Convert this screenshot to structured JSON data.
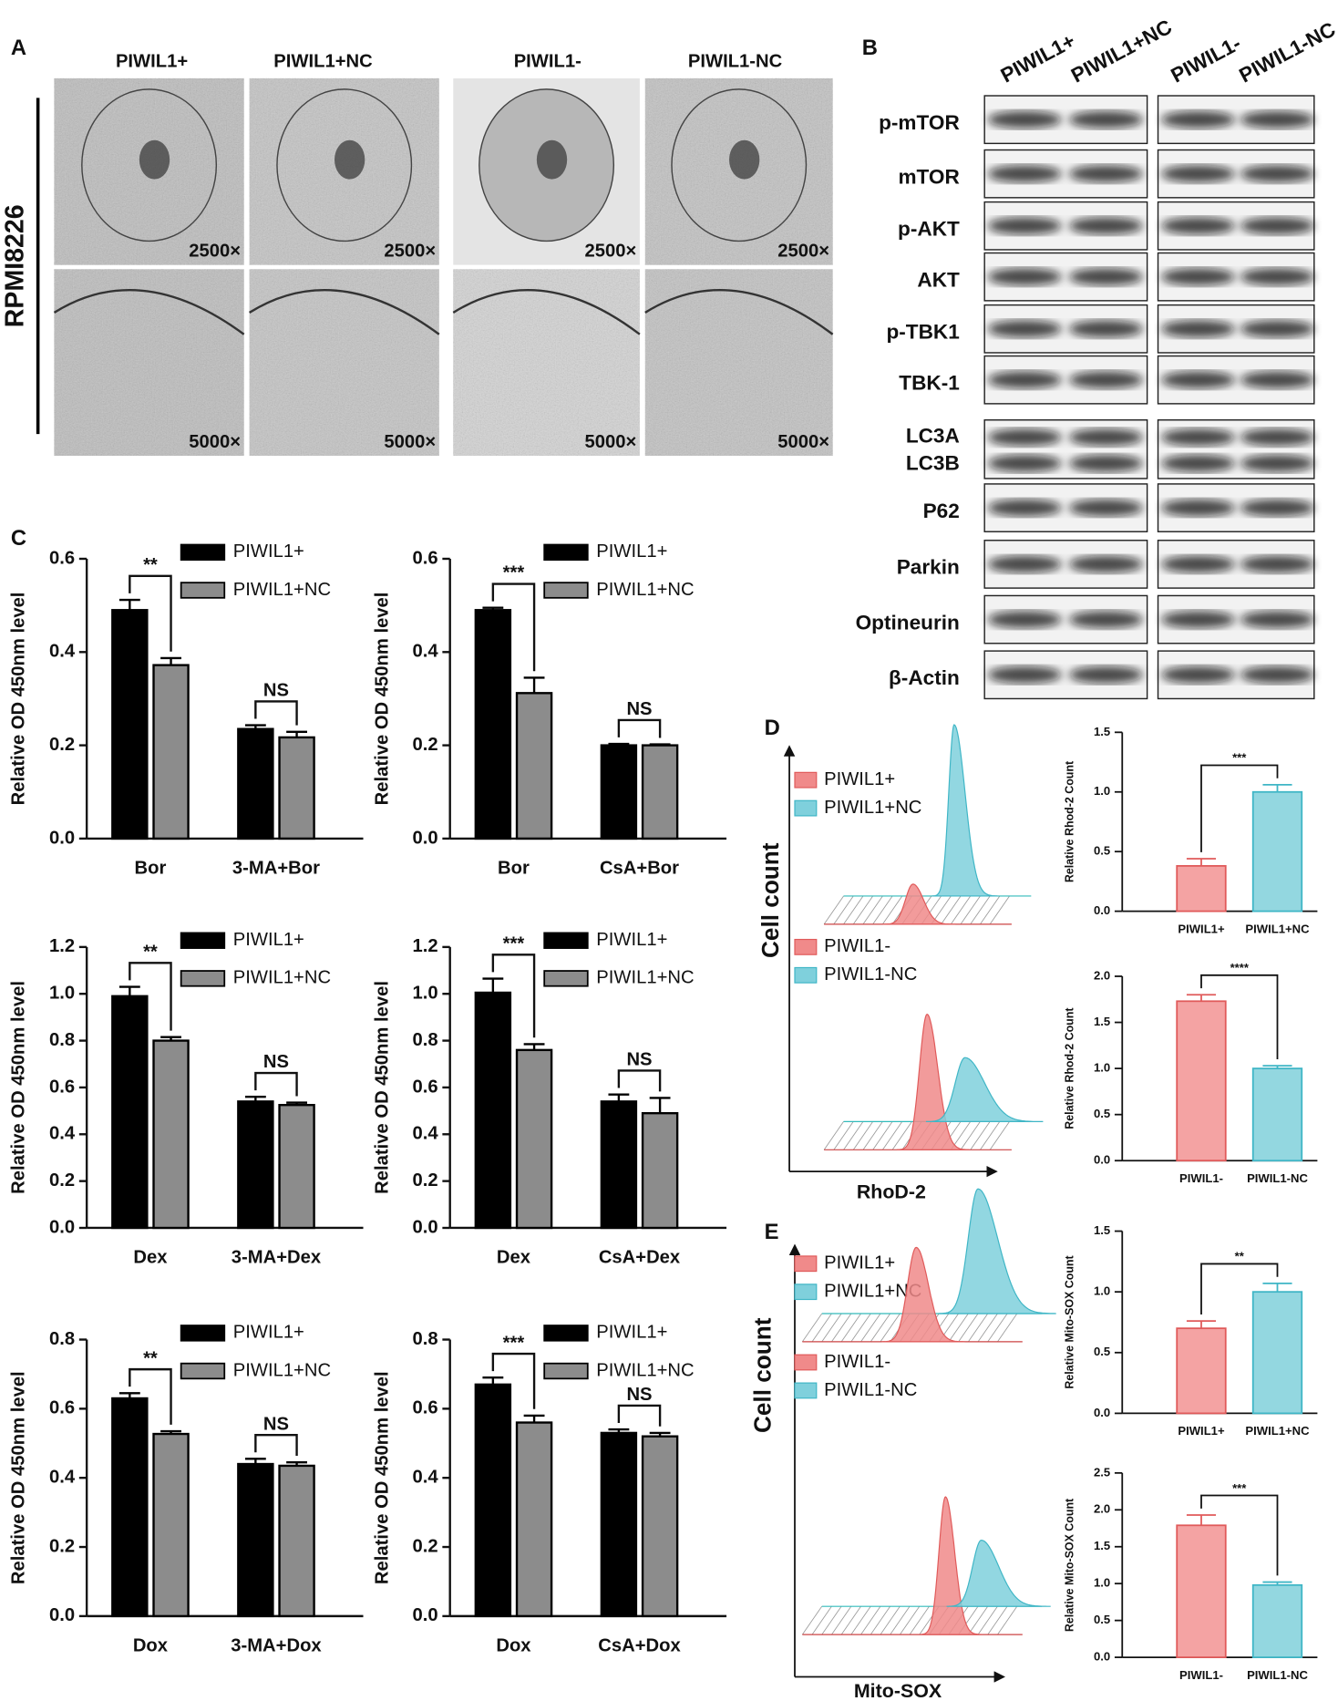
{
  "panel_a": {
    "letter": "A",
    "columns": [
      "PIWIL1+",
      "PIWIL1+NC",
      "PIWIL1-",
      "PIWIL1-NC"
    ],
    "row_label": "RPMI8226",
    "magnifications": [
      "2500×",
      "2500×",
      "2500×",
      "2500×",
      "5000×",
      "5000×",
      "5000×",
      "5000×"
    ]
  },
  "panel_b": {
    "letter": "B",
    "columns": [
      "PIWIL1+",
      "PIWIL1+NC",
      "PIWIL1-",
      "PIWIL1-NC"
    ],
    "proteins": [
      "p-mTOR",
      "mTOR",
      "p-AKT",
      "AKT",
      "p-TBK1",
      "TBK-1",
      [
        "LC3A",
        "LC3B"
      ],
      "P62",
      "Parkin",
      "Optineurin",
      "β-Actin"
    ]
  },
  "panel_c": {
    "letter": "C"
  },
  "panel_d": {
    "letter": "D",
    "legends": [
      [
        "PIWIL1+",
        "PIWIL1+NC"
      ],
      [
        "PIWIL1-",
        "PIWIL1-NC"
      ]
    ],
    "colors": [
      "#f08a8a",
      "#7fd0dc"
    ],
    "y_label": "Cell count",
    "x_label": "RhoD-2"
  },
  "panel_e": {
    "letter": "E",
    "legends": [
      [
        "PIWIL1+",
        "PIWIL1+NC"
      ],
      [
        "PIWIL1-",
        "PIWIL1-NC"
      ]
    ],
    "colors": [
      "#f08a8a",
      "#7fd0dc"
    ],
    "y_label": "Cell count",
    "x_label": "Mito-SOX"
  },
  "chart_data": [
    {
      "type": "bar",
      "categories": [
        "Bor",
        "3-MA+Bor"
      ],
      "y_label": "Relative OD 450nm level",
      "ylim": [
        0,
        0.6
      ],
      "yticks": [
        {
          "value": 0,
          "label": "0.0"
        },
        0.2,
        0.4,
        0.6
      ],
      "series": [
        {
          "name": "PIWIL1+",
          "color": "#000000",
          "values": [
            0.49,
            0.235
          ],
          "errors": [
            0.022,
            0.008
          ]
        },
        {
          "name": "PIWIL1+NC",
          "color": "#8c8c8c",
          "values": [
            0.372,
            0.217
          ],
          "errors": [
            0.015,
            0.012
          ]
        }
      ],
      "significance": [
        "**",
        "NS"
      ]
    },
    {
      "type": "bar",
      "categories": [
        "Bor",
        "CsA+Bor"
      ],
      "y_label": "Relative OD 450nm level",
      "ylim": [
        0,
        0.6
      ],
      "yticks": [
        {
          "value": 0,
          "label": "0.0"
        },
        0.2,
        0.4,
        0.6
      ],
      "series": [
        {
          "name": "PIWIL1+",
          "color": "#000000",
          "values": [
            0.49,
            0.2
          ],
          "errors": [
            0.005,
            0.003
          ]
        },
        {
          "name": "PIWIL1+NC",
          "color": "#8c8c8c",
          "values": [
            0.312,
            0.2
          ],
          "errors": [
            0.033,
            0.002
          ]
        }
      ],
      "significance": [
        "***",
        "NS"
      ]
    },
    {
      "type": "bar",
      "categories": [
        "Dex",
        "3-MA+Dex"
      ],
      "y_label": "Relative OD 450nm level",
      "ylim": [
        0,
        1.2
      ],
      "yticks": [
        {
          "value": 0,
          "label": "0.0"
        },
        0.2,
        0.4,
        0.6,
        0.8,
        {
          "value": 1,
          "label": "1.0"
        },
        1.2
      ],
      "series": [
        {
          "name": "PIWIL1+",
          "color": "#000000",
          "values": [
            0.99,
            0.54
          ],
          "errors": [
            0.04,
            0.02
          ]
        },
        {
          "name": "PIWIL1+NC",
          "color": "#8c8c8c",
          "values": [
            0.8,
            0.525
          ],
          "errors": [
            0.015,
            0.01
          ]
        }
      ],
      "significance": [
        "**",
        "NS"
      ]
    },
    {
      "type": "bar",
      "categories": [
        "Dex",
        "CsA+Dex"
      ],
      "y_label": "Relative OD 450nm level",
      "ylim": [
        0,
        1.2
      ],
      "yticks": [
        {
          "value": 0,
          "label": "0.0"
        },
        0.2,
        0.4,
        0.6,
        0.8,
        {
          "value": 1,
          "label": "1.0"
        },
        1.2
      ],
      "series": [
        {
          "name": "PIWIL1+",
          "color": "#000000",
          "values": [
            1.005,
            0.54
          ],
          "errors": [
            0.06,
            0.03
          ]
        },
        {
          "name": "PIWIL1+NC",
          "color": "#8c8c8c",
          "values": [
            0.76,
            0.49
          ],
          "errors": [
            0.025,
            0.065
          ]
        }
      ],
      "significance": [
        "***",
        "NS"
      ]
    },
    {
      "type": "bar",
      "categories": [
        "Dox",
        "3-MA+Dox"
      ],
      "y_label": "Relative OD 450nm level",
      "ylim": [
        0,
        0.8
      ],
      "yticks": [
        {
          "value": 0,
          "label": "0.0"
        },
        0.2,
        0.4,
        0.6,
        0.8
      ],
      "series": [
        {
          "name": "PIWIL1+",
          "color": "#000000",
          "values": [
            0.63,
            0.44
          ],
          "errors": [
            0.015,
            0.015
          ]
        },
        {
          "name": "PIWIL1+NC",
          "color": "#8c8c8c",
          "values": [
            0.527,
            0.435
          ],
          "errors": [
            0.008,
            0.01
          ]
        }
      ],
      "significance": [
        "**",
        "NS"
      ]
    },
    {
      "type": "bar",
      "categories": [
        "Dox",
        "CsA+Dox"
      ],
      "y_label": "Relative OD 450nm level",
      "ylim": [
        0,
        0.8
      ],
      "yticks": [
        {
          "value": 0,
          "label": "0.0"
        },
        0.2,
        0.4,
        0.6,
        0.8
      ],
      "series": [
        {
          "name": "PIWIL1+",
          "color": "#000000",
          "values": [
            0.67,
            0.53
          ],
          "errors": [
            0.02,
            0.01
          ]
        },
        {
          "name": "PIWIL1+NC",
          "color": "#8c8c8c",
          "values": [
            0.56,
            0.52
          ],
          "errors": [
            0.02,
            0.01
          ]
        }
      ],
      "significance": [
        "***",
        "NS"
      ]
    },
    {
      "type": "bar",
      "categories": [
        "PIWIL1+",
        "PIWIL1+NC"
      ],
      "y_label": "Relative Rhod-2 Count",
      "ylim": [
        0,
        1.5
      ],
      "yticks": [
        {
          "value": 0,
          "label": "0.0"
        },
        0.5,
        {
          "value": 1,
          "label": "1.0"
        },
        1.5
      ],
      "values": [
        0.38,
        1.0
      ],
      "errors": [
        0.06,
        0.06
      ],
      "colors": [
        "#f4a3a3",
        "#93d7e0"
      ],
      "edge_colors": [
        "#e05a5a",
        "#3fb6c6"
      ],
      "significance": [
        "***"
      ]
    },
    {
      "type": "bar",
      "categories": [
        "PIWIL1-",
        "PIWIL1-NC"
      ],
      "y_label": "Relative Rhod-2 Count",
      "ylim": [
        0,
        2
      ],
      "yticks": [
        {
          "value": 0,
          "label": "0.0"
        },
        0.5,
        {
          "value": 1,
          "label": "1.0"
        },
        1.5,
        {
          "value": 2,
          "label": "2.0"
        }
      ],
      "values": [
        1.73,
        1.0
      ],
      "errors": [
        0.07,
        0.03
      ],
      "colors": [
        "#f4a3a3",
        "#93d7e0"
      ],
      "edge_colors": [
        "#e05a5a",
        "#3fb6c6"
      ],
      "significance": [
        "****"
      ]
    },
    {
      "type": "bar",
      "categories": [
        "PIWIL1+",
        "PIWIL1+NC"
      ],
      "y_label": "Relative Mito-SOX Count",
      "ylim": [
        0,
        1.5
      ],
      "yticks": [
        {
          "value": 0,
          "label": "0.0"
        },
        0.5,
        {
          "value": 1,
          "label": "1.0"
        },
        1.5
      ],
      "values": [
        0.7,
        1.0
      ],
      "errors": [
        0.06,
        0.07
      ],
      "colors": [
        "#f4a3a3",
        "#93d7e0"
      ],
      "edge_colors": [
        "#e05a5a",
        "#3fb6c6"
      ],
      "significance": [
        "**"
      ]
    },
    {
      "type": "bar",
      "categories": [
        "PIWIL1-",
        "PIWIL1-NC"
      ],
      "y_label": "Relative Mito-SOX Count",
      "ylim": [
        0,
        2.5
      ],
      "yticks": [
        {
          "value": 0,
          "label": "0.0"
        },
        0.5,
        {
          "value": 1,
          "label": "1.0"
        },
        1.5,
        {
          "value": 2,
          "label": "2.0"
        },
        2.5
      ],
      "values": [
        1.79,
        0.98
      ],
      "errors": [
        0.14,
        0.04
      ],
      "colors": [
        "#f4a3a3",
        "#93d7e0"
      ],
      "edge_colors": [
        "#e05a5a",
        "#3fb6c6"
      ],
      "significance": [
        "***"
      ]
    }
  ]
}
